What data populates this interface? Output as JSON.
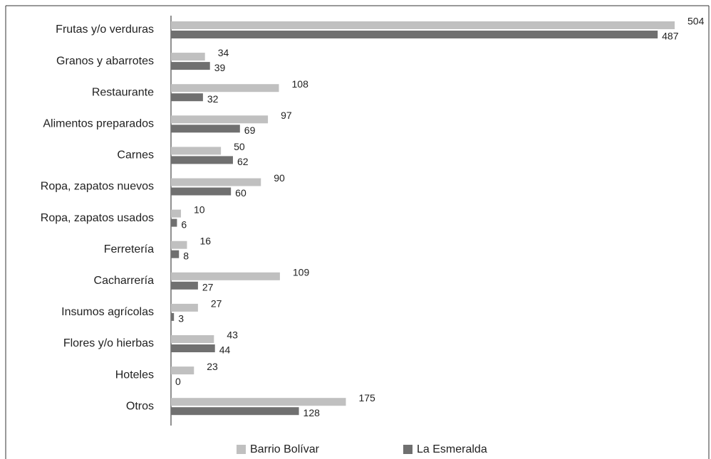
{
  "chart_data": {
    "type": "bar",
    "orientation": "horizontal",
    "categories": [
      "Frutas y/o verduras",
      "Granos y abarrotes",
      "Restaurante",
      "Alimentos preparados",
      "Carnes",
      "Ropa, zapatos nuevos",
      "Ropa, zapatos usados",
      "Ferretería",
      "Cacharrería",
      "Insumos agrícolas",
      "Flores y/o hierbas",
      "Hoteles",
      "Otros"
    ],
    "series": [
      {
        "name": "Barrio Bolívar",
        "color": "#c0c0c0",
        "values": [
          504,
          34,
          108,
          97,
          50,
          90,
          10,
          16,
          109,
          27,
          43,
          23,
          175
        ]
      },
      {
        "name": "La Esmeralda",
        "color": "#707070",
        "values": [
          487,
          39,
          32,
          69,
          62,
          60,
          6,
          8,
          27,
          3,
          44,
          0,
          128
        ]
      }
    ],
    "legend": "bottom"
  }
}
